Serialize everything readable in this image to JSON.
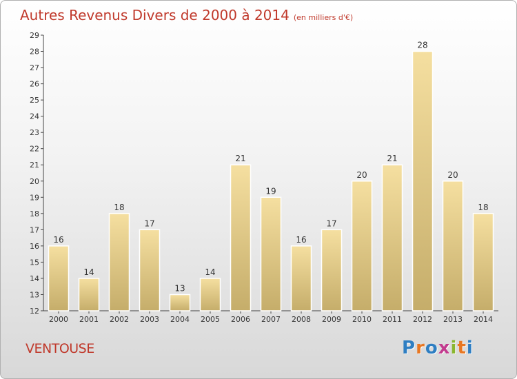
{
  "title": {
    "main": "Autres Revenus Divers de 2000 à 2014",
    "unit": "(en milliers d'€)"
  },
  "commune": "VENTOUSE",
  "logo": {
    "text": "Proxiti",
    "letter_colors": [
      "#2e7ec2",
      "#e87722",
      "#2e7ec2",
      "#c23b8e",
      "#8ab630",
      "#e87722",
      "#2e7ec2"
    ]
  },
  "colors": {
    "title": "#c0392b",
    "bar_light": "#f5dfa0",
    "bar_dark": "#c5ad6a",
    "axis": "#333333"
  },
  "chart_data": {
    "type": "bar",
    "categories": [
      "2000",
      "2001",
      "2002",
      "2003",
      "2004",
      "2005",
      "2006",
      "2007",
      "2008",
      "2009",
      "2010",
      "2011",
      "2012",
      "2013",
      "2014"
    ],
    "values": [
      16,
      14,
      18,
      17,
      13,
      14,
      21,
      19,
      16,
      17,
      20,
      21,
      28,
      20,
      18
    ],
    "ylim": [
      12,
      29
    ],
    "yticks": [
      12,
      13,
      14,
      15,
      16,
      17,
      18,
      19,
      20,
      21,
      22,
      23,
      24,
      25,
      26,
      27,
      28,
      29
    ],
    "data_labels": true,
    "grid": false
  }
}
